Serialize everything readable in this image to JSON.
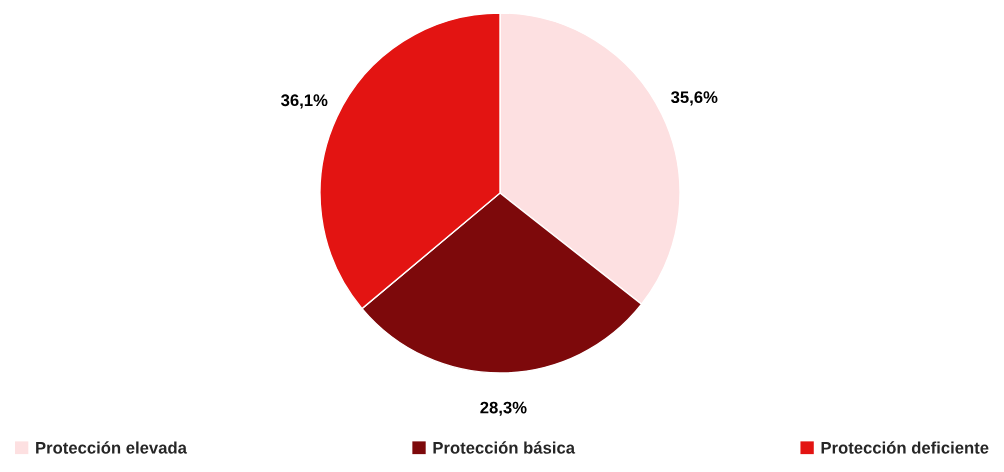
{
  "chart_data": {
    "type": "pie",
    "categories": [
      "Protección elevada",
      "Protección básica",
      "Protección deficiente"
    ],
    "values": [
      35.6,
      28.3,
      36.1
    ],
    "colors": [
      "#fde0e1",
      "#7d090b",
      "#e31412"
    ],
    "value_labels": [
      "35,6%",
      "28,3%",
      "36,1%"
    ],
    "legend": "bottom"
  }
}
